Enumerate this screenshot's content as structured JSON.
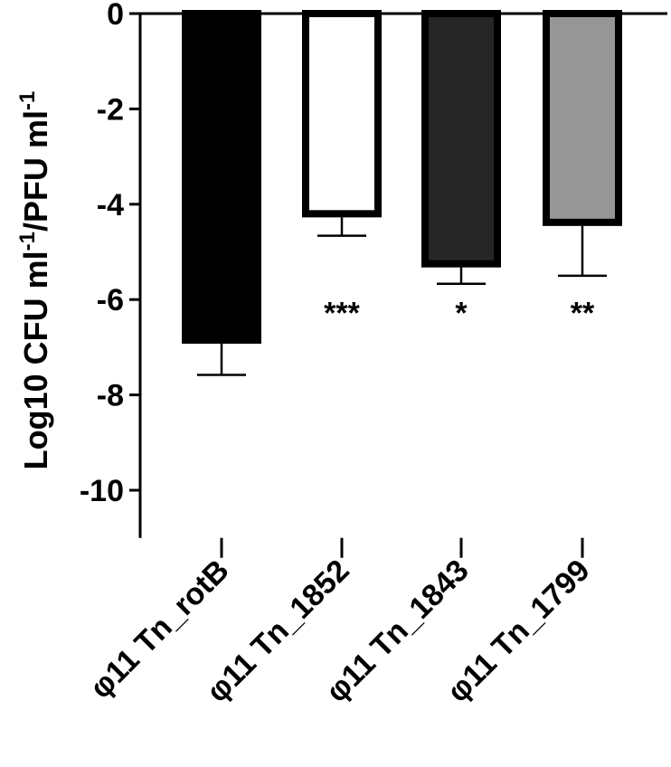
{
  "chart_data": {
    "type": "bar",
    "categories": [
      "φ11 Tn_rotB",
      "φ11 Tn_1852",
      "φ11 Tn_1843",
      "φ11 Tn_1799"
    ],
    "values": [
      -6.85,
      -4.2,
      -5.25,
      -4.38
    ],
    "errors": [
      0.73,
      0.46,
      0.42,
      1.12
    ],
    "significance": [
      "",
      "***",
      "*",
      "**"
    ],
    "bar_colors": [
      "#000000",
      "#ffffff",
      "#262626",
      "#969696"
    ],
    "ylabel": {
      "main": "Log10 CFU ml",
      "sup1": "-1",
      "mid": "/PFU ml",
      "sup2": "-1"
    },
    "ylim": [
      -11,
      0
    ],
    "yticks": [
      0,
      -2,
      -4,
      -6,
      -8,
      -10
    ],
    "ytick_labels": [
      "0",
      "-2",
      "-4",
      "-6",
      "-8",
      "-10"
    ],
    "grid": false
  }
}
